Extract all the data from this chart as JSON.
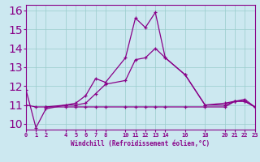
{
  "xlabel": "Windchill (Refroidissement éolien,°C)",
  "bg_color": "#cce8f0",
  "grid_color": "#99cccc",
  "line_color": "#880088",
  "series1_x": [
    0,
    1,
    2,
    4,
    5,
    6,
    7,
    8,
    10,
    11,
    12,
    13,
    14,
    16,
    18,
    20,
    21,
    22,
    23
  ],
  "series1_y": [
    11.8,
    9.8,
    10.8,
    11.0,
    11.1,
    11.5,
    12.4,
    12.2,
    13.5,
    15.6,
    15.1,
    15.9,
    13.5,
    12.6,
    11.0,
    11.1,
    11.2,
    11.3,
    10.9
  ],
  "series2_x": [
    2,
    4,
    5,
    6,
    7,
    8,
    10,
    11,
    12,
    13,
    14,
    16,
    18,
    20,
    21,
    22,
    23
  ],
  "series2_y": [
    10.9,
    10.9,
    10.9,
    10.9,
    10.9,
    10.9,
    10.9,
    10.9,
    10.9,
    10.9,
    10.9,
    10.9,
    10.9,
    10.9,
    11.2,
    11.2,
    10.9
  ],
  "series3_x": [
    0,
    1,
    2,
    4,
    5,
    6,
    7,
    8,
    10,
    11,
    12,
    13,
    14,
    16,
    18,
    20,
    21,
    22,
    23
  ],
  "series3_y": [
    11.0,
    10.9,
    10.9,
    11.0,
    11.0,
    11.1,
    11.6,
    12.1,
    12.3,
    13.4,
    13.5,
    14.0,
    13.5,
    12.6,
    11.0,
    11.0,
    11.2,
    11.2,
    10.9
  ],
  "xlim": [
    0,
    23
  ],
  "ylim": [
    9.7,
    16.3
  ],
  "yticks": [
    10,
    11,
    12,
    13,
    14,
    15,
    16
  ],
  "xticks": [
    0,
    1,
    2,
    4,
    5,
    6,
    7,
    8,
    10,
    11,
    12,
    13,
    14,
    16,
    18,
    20,
    21,
    22,
    23
  ]
}
